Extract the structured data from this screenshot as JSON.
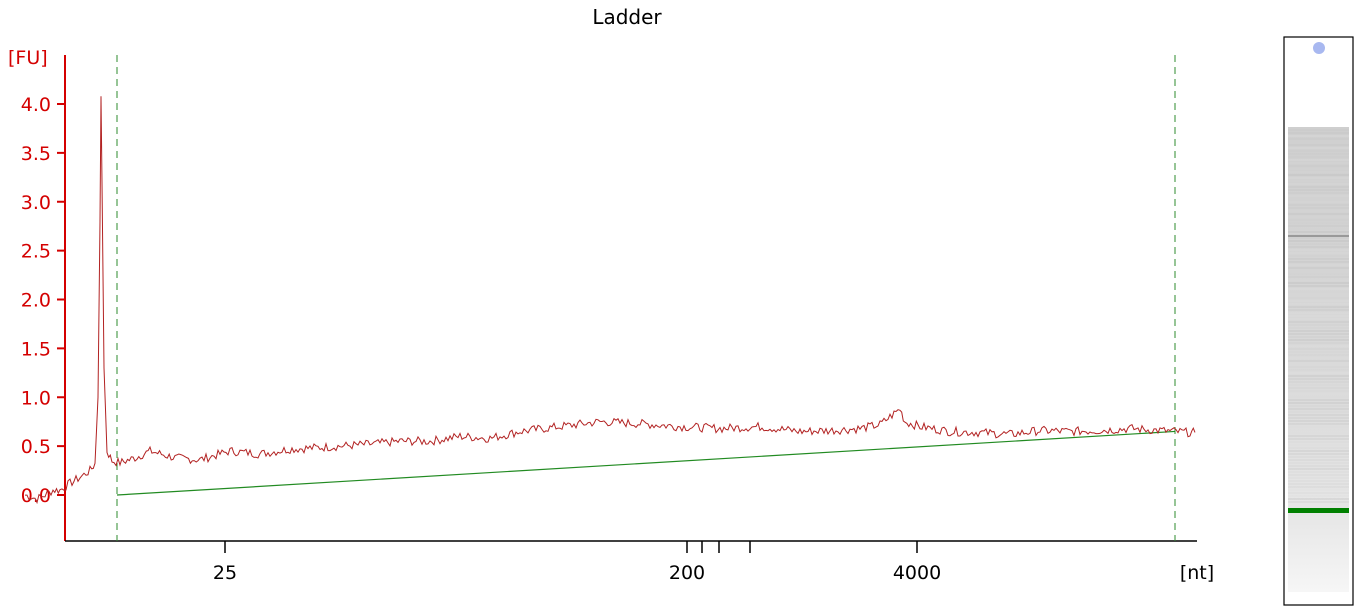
{
  "chart_data": {
    "type": "line",
    "title": "Ladder",
    "y_unit": "[FU]",
    "x_unit": "[nt]",
    "ylim": [
      -0.5,
      4.5
    ],
    "y_ticks": [
      "0.0",
      "0.5",
      "1.0",
      "1.5",
      "2.0",
      "2.5",
      "3.0",
      "3.5",
      "4.0"
    ],
    "x_tick_labels": [
      {
        "label": "25",
        "marker": 25
      },
      {
        "label": "200",
        "marker": 200
      },
      {
        "label": "4000",
        "marker": 4000
      }
    ],
    "ladder_markers": [
      25,
      200,
      500,
      1000,
      2000,
      4000
    ],
    "series": [
      {
        "color": "#b22222",
        "points": [
          [
            25,
            0.0
          ],
          [
            37,
            -0.04
          ],
          [
            47,
            0.01
          ],
          [
            53,
            0.05
          ],
          [
            60,
            0.05
          ],
          [
            70,
            0.12
          ],
          [
            80,
            0.18
          ],
          [
            90,
            0.25
          ],
          [
            95,
            0.32
          ],
          [
            98,
            1.0
          ],
          [
            100,
            2.8
          ],
          [
            101,
            4.08
          ],
          [
            102,
            3.2
          ],
          [
            104,
            1.3
          ],
          [
            107,
            0.45
          ],
          [
            112,
            0.35
          ],
          [
            120,
            0.33
          ],
          [
            135,
            0.38
          ],
          [
            150,
            0.45
          ],
          [
            175,
            0.38
          ],
          [
            200,
            0.36
          ],
          [
            230,
            0.45
          ],
          [
            260,
            0.42
          ],
          [
            290,
            0.47
          ],
          [
            310,
            0.48
          ],
          [
            340,
            0.5
          ],
          [
            370,
            0.52
          ],
          [
            400,
            0.55
          ],
          [
            430,
            0.55
          ],
          [
            460,
            0.6
          ],
          [
            490,
            0.58
          ],
          [
            520,
            0.65
          ],
          [
            560,
            0.7
          ],
          [
            600,
            0.75
          ],
          [
            640,
            0.73
          ],
          [
            680,
            0.7
          ],
          [
            720,
            0.68
          ],
          [
            760,
            0.7
          ],
          [
            800,
            0.65
          ],
          [
            830,
            0.66
          ],
          [
            860,
            0.68
          ],
          [
            880,
            0.72
          ],
          [
            900,
            0.88
          ],
          [
            905,
            0.75
          ],
          [
            920,
            0.7
          ],
          [
            950,
            0.65
          ],
          [
            980,
            0.64
          ],
          [
            1010,
            0.62
          ],
          [
            1040,
            0.66
          ],
          [
            1070,
            0.65
          ],
          [
            1100,
            0.66
          ],
          [
            1130,
            0.68
          ],
          [
            1160,
            0.66
          ],
          [
            1190,
            0.64
          ],
          [
            1195,
            0.64
          ]
        ]
      },
      {
        "color": "#228b22",
        "points": [
          [
            117,
            0.0
          ],
          [
            1175,
            0.65
          ]
        ]
      }
    ],
    "boundaries": [
      117,
      1175
    ],
    "gel": {
      "marker_band": "#008000",
      "upper_marker": "#a8b8f0"
    }
  }
}
